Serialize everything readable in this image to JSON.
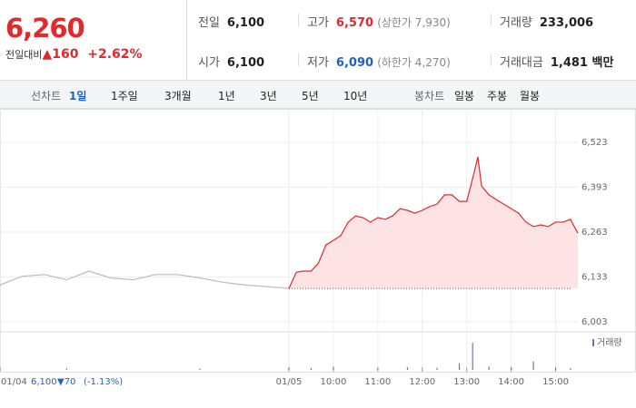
{
  "header": {
    "price": "6,260",
    "change_label": "전일대비",
    "change": "▲160",
    "change_pct": "+2.62%",
    "info": [
      {
        "key": "전일",
        "value": "6,100"
      },
      {
        "key": "고가",
        "value": "6,570",
        "sub": "(상한가 7,930)"
      },
      {
        "key": "거래량",
        "value": "233,006"
      },
      {
        "key": "시가",
        "value": "6,100"
      },
      {
        "key": "저가",
        "value": "6,090",
        "sub": "(하한가 4,270)"
      },
      {
        "key": "거래대금",
        "value": "1,481 백만"
      }
    ]
  },
  "tabs": {
    "line_label": "선차트",
    "line_periods": [
      "1일",
      "1주일",
      "3개월",
      "1년",
      "3년",
      "5년",
      "10년"
    ],
    "candle_label": "봉차트",
    "candle_periods": [
      "일봉",
      "주봉",
      "월봉"
    ]
  },
  "footer": {
    "prev_price": "6,100",
    "prev_change": "▼70",
    "prev_pct": "(-1.13%)"
  },
  "chart_data": {
    "type": "line",
    "grid": true,
    "xlim": [
      -390,
      390
    ],
    "ylim": [
      6003,
      6523
    ],
    "yticks": [
      {
        "value": 6003,
        "label": "6,003"
      },
      {
        "value": 6133,
        "label": "6,133"
      },
      {
        "value": 6263,
        "label": "6,263"
      },
      {
        "value": 6393,
        "label": "6,393"
      },
      {
        "value": 6523,
        "label": "6,523"
      }
    ],
    "xticks": [
      {
        "value": -390,
        "label": "01/04"
      },
      {
        "value": 0,
        "label": "01/05"
      },
      {
        "value": 60,
        "label": "10:00"
      },
      {
        "value": 120,
        "label": "11:00"
      },
      {
        "value": 180,
        "label": "12:00"
      },
      {
        "value": 240,
        "label": "13:00"
      },
      {
        "value": 300,
        "label": "14:00"
      },
      {
        "value": 360,
        "label": "15:00"
      }
    ],
    "baseline": 6100,
    "series": [
      {
        "color": "#bbbbbb",
        "x": [
          -390,
          -360,
          -330,
          -300,
          -270,
          -240,
          -210,
          -180,
          -150,
          -120,
          -90,
          -60,
          -30,
          0
        ],
        "values": [
          6110,
          6135,
          6140,
          6125,
          6150,
          6130,
          6125,
          6140,
          6140,
          6130,
          6118,
          6110,
          6105,
          6100
        ]
      },
      {
        "color": "#e4292b",
        "fill": "#fde3e3",
        "x": [
          0,
          10,
          20,
          30,
          40,
          50,
          60,
          70,
          80,
          90,
          100,
          110,
          120,
          130,
          140,
          150,
          160,
          170,
          180,
          190,
          200,
          210,
          220,
          230,
          240,
          250,
          255,
          260,
          270,
          280,
          290,
          300,
          310,
          320,
          330,
          340,
          350,
          360,
          370,
          380,
          390
        ],
        "values": [
          6100,
          6147,
          6150,
          6150,
          6174,
          6226,
          6239,
          6253,
          6292,
          6310,
          6305,
          6292,
          6305,
          6300,
          6310,
          6331,
          6326,
          6318,
          6326,
          6337,
          6344,
          6371,
          6371,
          6352,
          6352,
          6436,
          6481,
          6397,
          6371,
          6357,
          6344,
          6331,
          6318,
          6292,
          6279,
          6284,
          6279,
          6292,
          6292,
          6300,
          6260
        ]
      }
    ],
    "volume": {
      "name": "거래량",
      "color": "#7b6fb5",
      "ylim": [
        0,
        30000
      ],
      "x": [
        -300,
        -120,
        0,
        30,
        60,
        120,
        160,
        200,
        230,
        248,
        270,
        300,
        330,
        360,
        380
      ],
      "values": [
        1500,
        1200,
        2500,
        1800,
        3000,
        1500,
        2500,
        2000,
        6000,
        25000,
        3000,
        2500,
        8000,
        2000,
        1500
      ]
    }
  }
}
